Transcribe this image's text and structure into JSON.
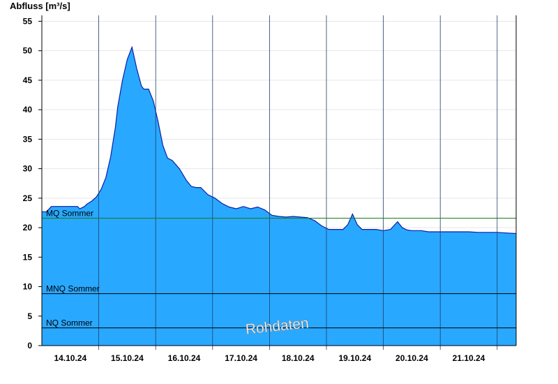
{
  "chart_data": {
    "type": "area",
    "title": "",
    "ylabel": "Abfluss [m³/s]",
    "xlabel": "",
    "ylim": [
      0,
      56
    ],
    "yticks": [
      0,
      5,
      10,
      15,
      20,
      25,
      30,
      35,
      40,
      45,
      50,
      55
    ],
    "xlim": [
      "2024-10-13T12:00",
      "2024-10-21T20:00"
    ],
    "day_boundaries": [
      "2024-10-14T12:00",
      "2024-10-15T12:00",
      "2024-10-16T12:00",
      "2024-10-17T12:00",
      "2024-10-18T12:00",
      "2024-10-19T12:00",
      "2024-10-20T12:00",
      "2024-10-21T12:00"
    ],
    "xtick_labels": [
      {
        "label": "14.10.24",
        "x": "2024-10-14T00:00"
      },
      {
        "label": "15.10.24",
        "x": "2024-10-15T00:00"
      },
      {
        "label": "16.10.24",
        "x": "2024-10-16T00:00"
      },
      {
        "label": "17.10.24",
        "x": "2024-10-17T00:00"
      },
      {
        "label": "18.10.24",
        "x": "2024-10-18T00:00"
      },
      {
        "label": "19.10.24",
        "x": "2024-10-19T00:00"
      },
      {
        "label": "20.10.24",
        "x": "2024-10-20T00:00"
      },
      {
        "label": "21.10.24",
        "x": "2024-10-21T00:00"
      }
    ],
    "grid": "horizontal light gray, vertical dark lines at day boundaries",
    "colors": {
      "fill": "#29a8ff",
      "line": "#0b1fa8",
      "mq_line": "#1a7a1a",
      "ref_line": "#000000"
    },
    "reference_lines": [
      {
        "label": "MQ Sommer",
        "value": 21.6
      },
      {
        "label": "MNQ Sommer",
        "value": 8.8
      },
      {
        "label": "NQ Sommer",
        "value": 3.0
      }
    ],
    "watermark": "Rohdaten",
    "series": [
      {
        "x": [
          "2024-10-13T12:00",
          "2024-10-13T14:00",
          "2024-10-13T16:00",
          "2024-10-13T17:00",
          "2024-10-13T21:00",
          "2024-10-14T00:00",
          "2024-10-14T03:00",
          "2024-10-14T04:00",
          "2024-10-14T06:00",
          "2024-10-14T07:00",
          "2024-10-14T09:00",
          "2024-10-14T11:00",
          "2024-10-14T13:00",
          "2024-10-14T15:00",
          "2024-10-14T17:00",
          "2024-10-14T19:00",
          "2024-10-14T20:00",
          "2024-10-14T22:00",
          "2024-10-15T00:00",
          "2024-10-15T02:00",
          "2024-10-15T04:00",
          "2024-10-15T06:00",
          "2024-10-15T07:00",
          "2024-10-15T09:00",
          "2024-10-15T11:00",
          "2024-10-15T13:00",
          "2024-10-15T15:00",
          "2024-10-15T17:00",
          "2024-10-15T19:00",
          "2024-10-15T22:00",
          "2024-10-16T01:00",
          "2024-10-16T03:00",
          "2024-10-16T05:00",
          "2024-10-16T07:00",
          "2024-10-16T10:00",
          "2024-10-16T13:00",
          "2024-10-16T16:00",
          "2024-10-16T19:00",
          "2024-10-16T22:00",
          "2024-10-17T01:00",
          "2024-10-17T04:00",
          "2024-10-17T07:00",
          "2024-10-17T10:00",
          "2024-10-17T13:00",
          "2024-10-17T16:00",
          "2024-10-17T19:00",
          "2024-10-17T22:00",
          "2024-10-18T01:00",
          "2024-10-18T04:00",
          "2024-10-18T07:00",
          "2024-10-18T10:00",
          "2024-10-18T13:00",
          "2024-10-18T16:00",
          "2024-10-18T19:00",
          "2024-10-18T21:00",
          "2024-10-18T23:00",
          "2024-10-19T01:00",
          "2024-10-19T03:00",
          "2024-10-19T06:00",
          "2024-10-19T09:00",
          "2024-10-19T12:00",
          "2024-10-19T15:00",
          "2024-10-19T18:00",
          "2024-10-19T20:00",
          "2024-10-19T22:00",
          "2024-10-20T00:00",
          "2024-10-20T02:00",
          "2024-10-20T04:00",
          "2024-10-20T07:00",
          "2024-10-20T10:00",
          "2024-10-20T12:00",
          "2024-10-20T16:00",
          "2024-10-20T20:00",
          "2024-10-21T00:00",
          "2024-10-21T04:00",
          "2024-10-21T08:00",
          "2024-10-21T12:00",
          "2024-10-21T16:00",
          "2024-10-21T20:00"
        ],
        "values": [
          22.7,
          22.7,
          23.6,
          23.6,
          23.6,
          23.6,
          23.6,
          23.2,
          23.6,
          24.0,
          24.5,
          25.2,
          26.5,
          28.5,
          32.0,
          37.0,
          40.5,
          45.0,
          48.5,
          50.6,
          47.0,
          44.0,
          43.5,
          43.5,
          41.5,
          38.0,
          34.0,
          31.8,
          31.4,
          30.0,
          28.0,
          27.0,
          26.8,
          26.8,
          25.6,
          25.0,
          24.1,
          23.5,
          23.2,
          23.6,
          23.2,
          23.5,
          23.0,
          22.1,
          21.9,
          21.8,
          21.9,
          21.8,
          21.7,
          21.2,
          20.3,
          19.7,
          19.7,
          19.7,
          20.5,
          22.3,
          20.5,
          19.7,
          19.7,
          19.7,
          19.5,
          19.7,
          21.0,
          20.0,
          19.6,
          19.5,
          19.5,
          19.5,
          19.3,
          19.3,
          19.3,
          19.3,
          19.3,
          19.3,
          19.2,
          19.2,
          19.2,
          19.1,
          19.0
        ]
      }
    ]
  }
}
